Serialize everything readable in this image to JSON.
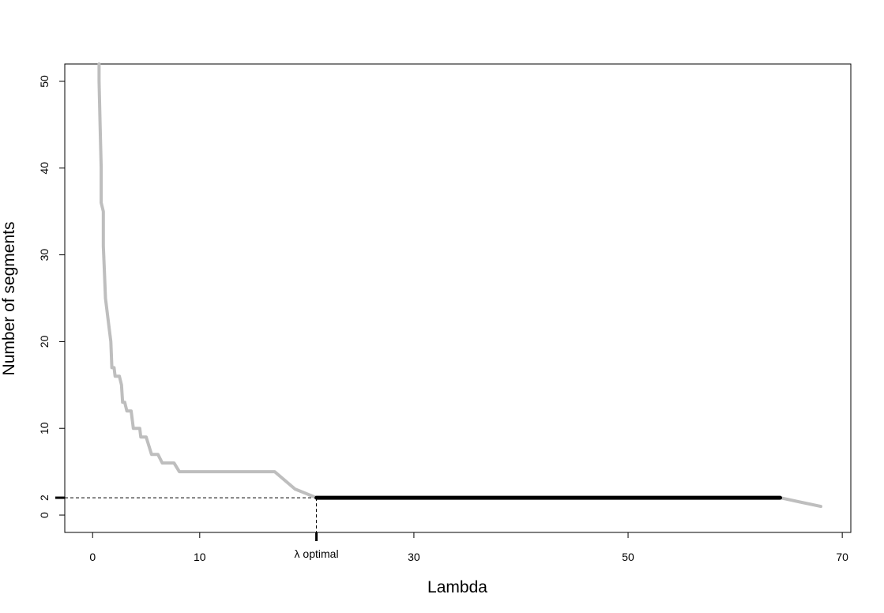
{
  "chart_data": {
    "type": "line",
    "title": "",
    "xlabel": "Lambda",
    "ylabel": "Number of segments",
    "xlim": [
      -2.6,
      70.8
    ],
    "ylim": [
      -2,
      52
    ],
    "x_ticks": [
      {
        "value": 0,
        "label": "0"
      },
      {
        "value": 10,
        "label": "10"
      },
      {
        "value": 30,
        "label": "30"
      },
      {
        "value": 50,
        "label": "50"
      },
      {
        "value": 70,
        "label": "70"
      }
    ],
    "y_ticks": [
      {
        "value": 0,
        "label": "0"
      },
      {
        "value": 10,
        "label": "10"
      },
      {
        "value": 20,
        "label": "20"
      },
      {
        "value": 30,
        "label": "30"
      },
      {
        "value": 40,
        "label": "40"
      },
      {
        "value": 50,
        "label": "50"
      }
    ],
    "y_marker": {
      "value": 2,
      "label": "2"
    },
    "optimal": {
      "x": 20.9,
      "y": 2,
      "label": "λ optimal"
    },
    "grid": false,
    "legend": "none",
    "colors": {
      "path": "#bebebe",
      "selected": "#000000",
      "guide": "#000000"
    },
    "series": [
      {
        "role": "path",
        "points": [
          [
            0.6,
            52
          ],
          [
            0.6,
            50
          ],
          [
            0.7,
            45
          ],
          [
            0.8,
            40
          ],
          [
            0.8,
            36
          ],
          [
            1.0,
            35
          ],
          [
            1.0,
            31
          ],
          [
            1.1,
            28
          ],
          [
            1.2,
            25
          ],
          [
            1.4,
            23
          ],
          [
            1.6,
            21
          ],
          [
            1.7,
            20
          ],
          [
            1.8,
            17
          ],
          [
            2.0,
            17
          ],
          [
            2.1,
            16
          ],
          [
            2.5,
            16
          ],
          [
            2.7,
            15
          ],
          [
            2.8,
            13
          ],
          [
            3.0,
            13
          ],
          [
            3.2,
            12
          ],
          [
            3.6,
            12
          ],
          [
            3.7,
            11
          ],
          [
            3.8,
            10
          ],
          [
            4.4,
            10
          ],
          [
            4.5,
            9
          ],
          [
            5.0,
            9
          ],
          [
            5.5,
            7
          ],
          [
            6.1,
            7
          ],
          [
            6.5,
            6
          ],
          [
            7.6,
            6
          ],
          [
            8.1,
            5
          ],
          [
            17.0,
            5
          ],
          [
            18.9,
            3
          ],
          [
            20.9,
            2
          ],
          [
            64.2,
            2
          ],
          [
            68.0,
            1
          ]
        ]
      },
      {
        "role": "selected",
        "points": [
          [
            20.9,
            2
          ],
          [
            64.2,
            2
          ]
        ]
      }
    ]
  }
}
